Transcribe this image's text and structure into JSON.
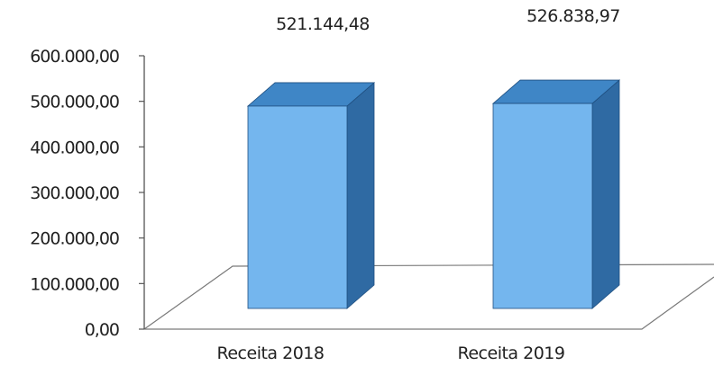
{
  "chart_data": {
    "type": "bar",
    "style": "3d-column",
    "categories": [
      "Receita 2018",
      "Receita 2019"
    ],
    "values": [
      521144.48,
      526838.97
    ],
    "value_labels": [
      "521.144,48",
      "526.838,97"
    ],
    "ylim": [
      0,
      600000
    ],
    "y_ticks": [
      0,
      100000,
      200000,
      300000,
      400000,
      500000,
      600000
    ],
    "y_tick_labels": [
      "0,00",
      "100.000,00",
      "200.000,00",
      "300.000,00",
      "400.000,00",
      "500.000,00",
      "600.000,00"
    ],
    "grid": false,
    "legend": "none",
    "colors": {
      "bar_front": "#74b6ee",
      "bar_top": "#3f86c6",
      "bar_side": "#2f6aa3",
      "bar_edge": "#1f4f80",
      "axis": "#555555",
      "floor_edge": "#7a7a7a"
    }
  }
}
